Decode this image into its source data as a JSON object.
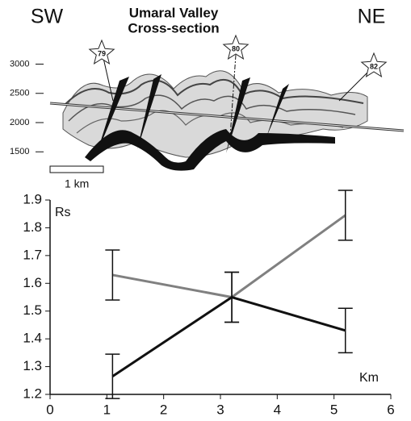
{
  "section": {
    "left_label": "SW",
    "right_label": "NE",
    "title": [
      "Umaral Valley",
      "Cross-section"
    ],
    "depth_ticks": [
      3000,
      2500,
      2000,
      1500
    ],
    "stars": [
      "79",
      "80",
      "82"
    ],
    "scale_label": "1 km"
  },
  "chart_data": {
    "type": "line",
    "ylabel": "Rs",
    "xlabel": "Km",
    "x": [
      1.1,
      3.2,
      5.2
    ],
    "series": [
      {
        "color": "#808080",
        "values": [
          1.63,
          1.55,
          1.845
        ],
        "errors": [
          0.09,
          0.09,
          0.09
        ]
      },
      {
        "color": "#111111",
        "values": [
          1.265,
          1.55,
          1.43
        ],
        "errors": [
          0.08,
          0.09,
          0.08
        ]
      }
    ],
    "xlim": [
      0,
      6
    ],
    "xticks": [
      0,
      1,
      2,
      3,
      4,
      5,
      6
    ],
    "ylim": [
      1.2,
      1.9
    ],
    "yticks": [
      1.2,
      1.3,
      1.4,
      1.5,
      1.6,
      1.7,
      1.8,
      1.9
    ]
  }
}
